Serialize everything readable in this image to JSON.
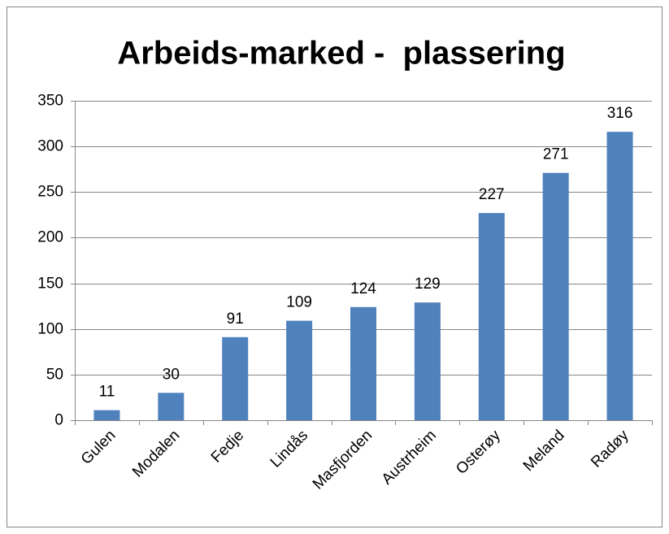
{
  "chart_data": {
    "type": "bar",
    "title": "Arbeids-marked -  plassering",
    "categories": [
      "Gulen",
      "Modalen",
      "Fedje",
      "Lindås",
      "Masfjorden",
      "Austrheim",
      "Osterøy",
      "Meland",
      "Radøy"
    ],
    "values": [
      11,
      30,
      91,
      109,
      124,
      129,
      227,
      271,
      316
    ],
    "color": "#4f81bd",
    "ylim": [
      0,
      350
    ],
    "yticks": [
      0,
      50,
      100,
      150,
      200,
      250,
      300,
      350
    ],
    "grid": true
  }
}
